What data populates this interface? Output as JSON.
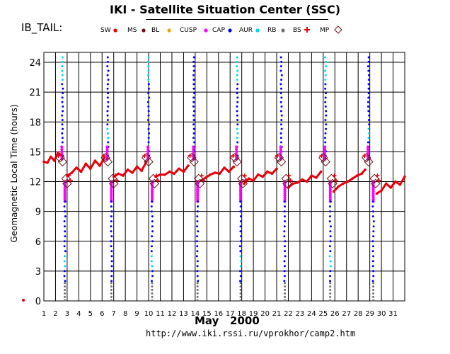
{
  "header": {
    "title": "IKI - Satellite Situation Center (SSC)",
    "satellite": "IB_TAIL:",
    "footer_url": "http://www.iki.rssi.ru/vprokhor/camp2.htm"
  },
  "chart_data": {
    "type": "scatter",
    "title": "IKI - Satellite Situation Center (SSC)",
    "xlabel": "May   2000",
    "ylabel": "Geomagnetic  Local  Time  (hours)",
    "xlim": [
      1,
      32
    ],
    "ylim": [
      0,
      25
    ],
    "x_ticks": [
      "1",
      "2",
      "3",
      "4",
      "5",
      "6",
      "7",
      "8",
      "9",
      "10",
      "11",
      "12",
      "13",
      "14",
      "15",
      "16",
      "17",
      "18",
      "19",
      "20",
      "21",
      "22",
      "23",
      "24",
      "25",
      "26",
      "27",
      "28",
      "29",
      "30",
      "31"
    ],
    "y_ticks": [
      0,
      3,
      6,
      9,
      12,
      15,
      18,
      21,
      24
    ],
    "y_tick_labels": [
      "0",
      "3",
      "6",
      "9",
      "12",
      "15",
      "18",
      "21",
      "24"
    ],
    "grid": true,
    "legend": [
      {
        "name": "SW",
        "color": "#e8000b"
      },
      {
        "name": "MS",
        "color": "#6b0f1a"
      },
      {
        "name": "BL",
        "color": "#f5a000"
      },
      {
        "name": "CUSP",
        "color": "#ff00ff"
      },
      {
        "name": "CAP",
        "color": "#0000ff"
      },
      {
        "name": "AUR",
        "color": "#00d8e8"
      },
      {
        "name": "RB",
        "color": "#707070"
      },
      {
        "name": "BS",
        "color": "#e8000b"
      },
      {
        "name": "MP",
        "color": "#6b0f1a"
      }
    ],
    "crossings": [
      {
        "pre": 2.6,
        "post": 2.8
      },
      {
        "pre": 6.5,
        "post": 6.8
      },
      {
        "pre": 10.0,
        "post": 10.3
      },
      {
        "pre": 13.9,
        "post": 14.2
      },
      {
        "pre": 17.6,
        "post": 17.9
      },
      {
        "pre": 21.4,
        "post": 21.7
      },
      {
        "pre": 25.2,
        "post": 25.6
      },
      {
        "pre": 28.9,
        "post": 29.3
      }
    ],
    "sw_trace": [
      [
        1.0,
        14.0
      ],
      [
        1.3,
        13.9
      ],
      [
        1.6,
        14.5
      ],
      [
        1.9,
        14.1
      ],
      [
        2.2,
        14.9
      ],
      [
        2.4,
        14.7
      ],
      [
        3.0,
        12.6
      ],
      [
        3.4,
        12.9
      ],
      [
        3.8,
        13.4
      ],
      [
        4.2,
        13.0
      ],
      [
        4.6,
        13.8
      ],
      [
        5.0,
        13.3
      ],
      [
        5.4,
        14.1
      ],
      [
        5.8,
        13.6
      ],
      [
        6.2,
        14.4
      ],
      [
        7.0,
        12.5
      ],
      [
        7.4,
        12.8
      ],
      [
        7.8,
        12.6
      ],
      [
        8.2,
        13.2
      ],
      [
        8.6,
        12.9
      ],
      [
        9.0,
        13.5
      ],
      [
        9.4,
        13.1
      ],
      [
        9.8,
        14.0
      ],
      [
        10.6,
        12.5
      ],
      [
        11.0,
        12.7
      ],
      [
        11.4,
        12.7
      ],
      [
        11.8,
        13.0
      ],
      [
        12.2,
        12.8
      ],
      [
        12.6,
        13.3
      ],
      [
        13.0,
        13.0
      ],
      [
        13.4,
        13.6
      ],
      [
        14.5,
        12.1
      ],
      [
        14.9,
        12.4
      ],
      [
        15.3,
        12.7
      ],
      [
        15.7,
        12.9
      ],
      [
        16.1,
        12.8
      ],
      [
        16.5,
        13.4
      ],
      [
        16.9,
        13.0
      ],
      [
        17.3,
        13.5
      ],
      [
        18.2,
        11.8
      ],
      [
        18.6,
        12.3
      ],
      [
        19.0,
        12.1
      ],
      [
        19.4,
        12.7
      ],
      [
        19.8,
        12.5
      ],
      [
        20.2,
        13.0
      ],
      [
        20.6,
        12.8
      ],
      [
        21.0,
        13.3
      ],
      [
        22.0,
        11.4
      ],
      [
        22.4,
        11.8
      ],
      [
        22.8,
        11.9
      ],
      [
        23.2,
        12.2
      ],
      [
        23.6,
        12.0
      ],
      [
        24.0,
        12.6
      ],
      [
        24.4,
        12.4
      ],
      [
        24.8,
        13.0
      ],
      [
        25.9,
        11.0
      ],
      [
        26.3,
        11.5
      ],
      [
        26.7,
        11.8
      ],
      [
        27.1,
        12.0
      ],
      [
        27.5,
        12.3
      ],
      [
        27.9,
        12.6
      ],
      [
        28.3,
        12.8
      ],
      [
        28.6,
        13.2
      ],
      [
        29.6,
        10.8
      ],
      [
        30.0,
        11.1
      ],
      [
        30.4,
        11.8
      ],
      [
        30.8,
        11.4
      ],
      [
        31.2,
        12.0
      ],
      [
        31.6,
        11.7
      ],
      [
        32.0,
        12.5
      ]
    ]
  }
}
